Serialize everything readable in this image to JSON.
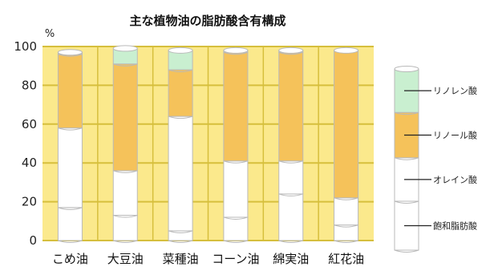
{
  "chart_data": {
    "type": "bar",
    "stacked": true,
    "title": "主な植物油の脂肪酸含有構成",
    "yunit": "%",
    "ylim": [
      0,
      100
    ],
    "yticks": [
      0,
      20,
      40,
      60,
      80,
      100
    ],
    "grid": true,
    "categories": [
      "こめ油",
      "大豆油",
      "菜種油",
      "コーン油",
      "綿実油",
      "紅花油"
    ],
    "series": [
      {
        "name": "飽和脂肪酸",
        "color": "#ffffff",
        "values": [
          17,
          13,
          5,
          12,
          24,
          8
        ]
      },
      {
        "name": "オレイン酸",
        "color": "#ffffff",
        "values": [
          41,
          23,
          59,
          29,
          17,
          14
        ]
      },
      {
        "name": "リノール酸",
        "color": "#f5c25a",
        "values": [
          38,
          55,
          24,
          56,
          56,
          76
        ]
      },
      {
        "name": "リノレン酸",
        "color": "#c9efd0",
        "values": [
          1,
          8,
          10,
          1,
          1,
          0
        ]
      }
    ],
    "legend_position": "right",
    "colors": {
      "background": "#fbe98c",
      "grid": "#d6bf3c",
      "outline": "#b9b9b9"
    }
  }
}
